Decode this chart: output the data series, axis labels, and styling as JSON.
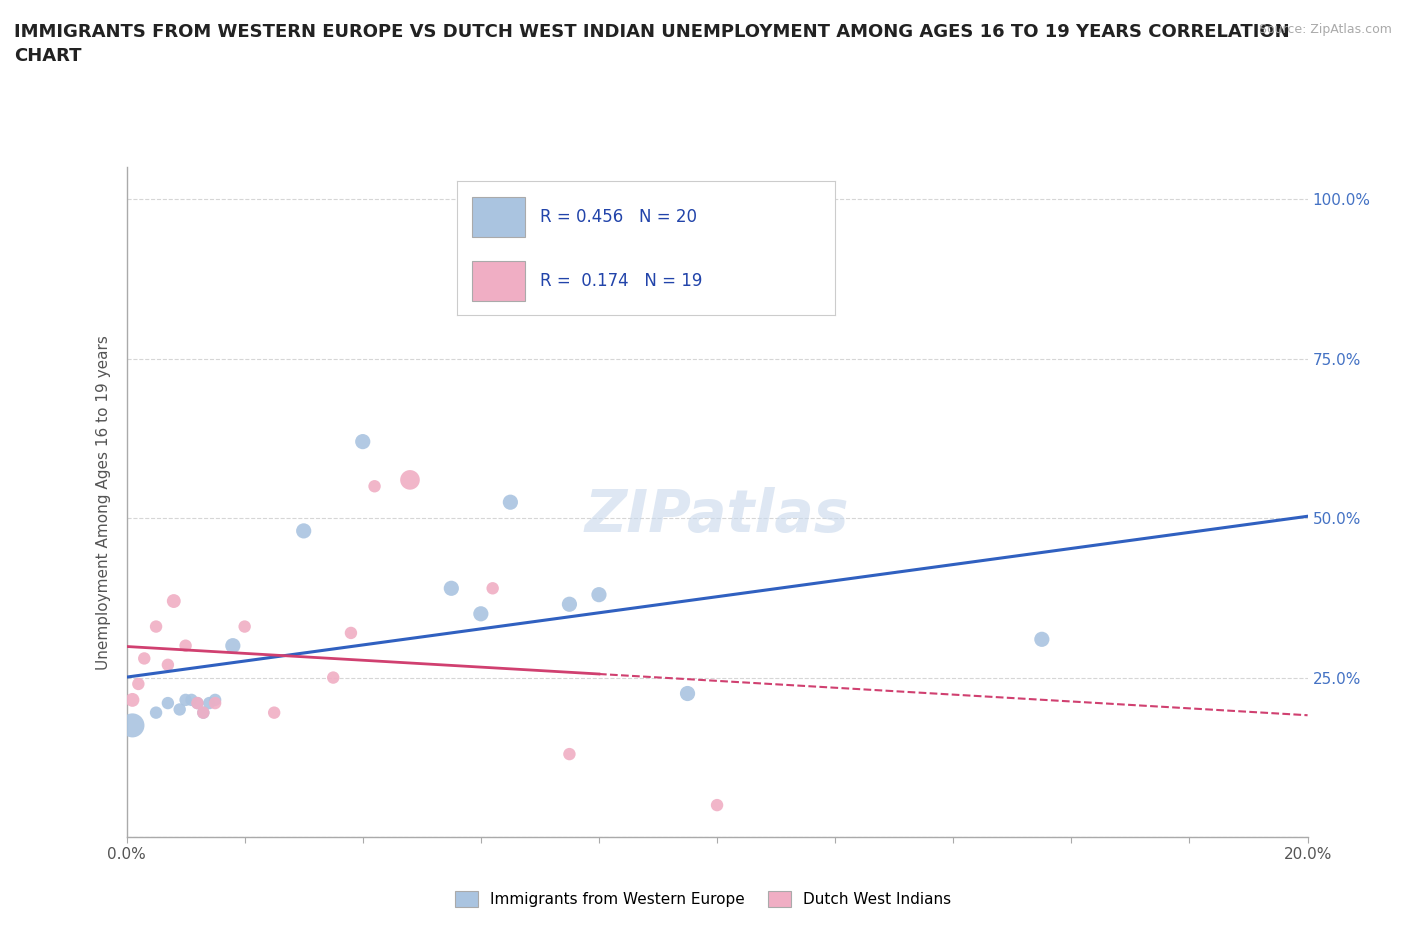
{
  "title": "IMMIGRANTS FROM WESTERN EUROPE VS DUTCH WEST INDIAN UNEMPLOYMENT AMONG AGES 16 TO 19 YEARS CORRELATION\nCHART",
  "source": "Source: ZipAtlas.com",
  "ylabel": "Unemployment Among Ages 16 to 19 years",
  "xlim": [
    0.0,
    0.2
  ],
  "ylim": [
    0.0,
    1.05
  ],
  "xticks": [
    0.0,
    0.02,
    0.04,
    0.06,
    0.08,
    0.1,
    0.12,
    0.14,
    0.16,
    0.18,
    0.2
  ],
  "yticks": [
    0.0,
    0.25,
    0.5,
    0.75,
    1.0
  ],
  "ytick_labels_right": [
    "25.0%",
    "50.0%",
    "75.0%",
    "100.0%"
  ],
  "ytick_positions_right": [
    0.25,
    0.5,
    0.75,
    1.0
  ],
  "xtick_labels": [
    "0.0%",
    "",
    "",
    "",
    "",
    "",
    "",
    "",
    "",
    "",
    "20.0%"
  ],
  "blue_color": "#aac4e0",
  "pink_color": "#f0aec4",
  "blue_line_color": "#3060c0",
  "pink_line_color": "#d04070",
  "R_blue": 0.456,
  "N_blue": 20,
  "R_pink": 0.174,
  "N_pink": 19,
  "blue_x": [
    0.001,
    0.005,
    0.007,
    0.009,
    0.01,
    0.011,
    0.012,
    0.013,
    0.014,
    0.015,
    0.018,
    0.03,
    0.04,
    0.055,
    0.06,
    0.065,
    0.075,
    0.08,
    0.095,
    0.155
  ],
  "blue_y": [
    0.175,
    0.195,
    0.21,
    0.2,
    0.215,
    0.215,
    0.21,
    0.195,
    0.21,
    0.215,
    0.3,
    0.48,
    0.62,
    0.39,
    0.35,
    0.525,
    0.365,
    0.38,
    0.225,
    0.31
  ],
  "blue_sizes": [
    300,
    80,
    80,
    80,
    80,
    80,
    80,
    80,
    80,
    80,
    120,
    120,
    120,
    120,
    120,
    120,
    120,
    120,
    120,
    120
  ],
  "pink_x": [
    0.001,
    0.002,
    0.003,
    0.005,
    0.007,
    0.008,
    0.01,
    0.012,
    0.013,
    0.015,
    0.02,
    0.025,
    0.035,
    0.038,
    0.042,
    0.048,
    0.062,
    0.075,
    0.1
  ],
  "pink_y": [
    0.215,
    0.24,
    0.28,
    0.33,
    0.27,
    0.37,
    0.3,
    0.21,
    0.195,
    0.21,
    0.33,
    0.195,
    0.25,
    0.32,
    0.55,
    0.56,
    0.39,
    0.13,
    0.05
  ],
  "pink_sizes": [
    100,
    80,
    80,
    80,
    80,
    100,
    80,
    80,
    80,
    80,
    80,
    80,
    80,
    80,
    80,
    200,
    80,
    80,
    80
  ],
  "watermark": "ZIPatlas",
  "background_color": "#ffffff",
  "grid_color": "#cccccc"
}
